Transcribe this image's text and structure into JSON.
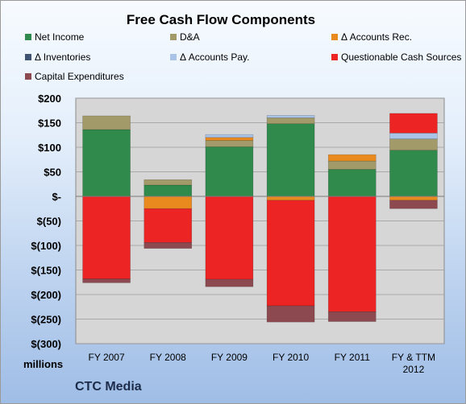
{
  "chart_data": {
    "type": "bar",
    "stacked": true,
    "title": "Free Cash Flow Components",
    "units_label": "millions",
    "company": "CTC Media",
    "categories": [
      "FY 2007",
      "FY 2008",
      "FY 2009",
      "FY 2010",
      "FY 2011",
      "FY & TTM 2012"
    ],
    "ylim": [
      -300,
      200
    ],
    "yticks": [
      200,
      150,
      100,
      50,
      0,
      -50,
      -100,
      -150,
      -200,
      -250,
      -300
    ],
    "ytick_labels": [
      "$200",
      "$150",
      "$100",
      "$50",
      "$-",
      "$(50)",
      "$(100)",
      "$(150)",
      "$(200)",
      "$(250)",
      "$(300)"
    ],
    "grid": true,
    "legend_position": "top",
    "series": [
      {
        "name": "Net Income",
        "color": "#2f8a4c",
        "values": [
          136,
          23,
          101,
          148,
          55,
          94
        ]
      },
      {
        "name": "D&A",
        "color": "#a39a6a",
        "values": [
          28,
          11,
          13,
          12,
          17,
          23
        ]
      },
      {
        "name": "Δ Accounts Rec.",
        "color": "#e98a1e",
        "values": [
          0,
          -25,
          6,
          -8,
          13,
          -8
        ]
      },
      {
        "name": "Δ Inventories",
        "color": "#3f5372",
        "values": [
          0,
          0,
          0,
          0,
          0,
          0
        ]
      },
      {
        "name": "Δ Accounts Pay.",
        "color": "#a9c4e6",
        "values": [
          0,
          0,
          6,
          5,
          0,
          12
        ]
      },
      {
        "name": "Questionable Cash Sources",
        "color": "#ec2424",
        "values": [
          -168,
          -69,
          -169,
          -215,
          -235,
          40
        ]
      },
      {
        "name": "Capital Expenditures",
        "color": "#8c4a50",
        "values": [
          -8,
          -12,
          -15,
          -33,
          -20,
          -17
        ]
      }
    ]
  }
}
